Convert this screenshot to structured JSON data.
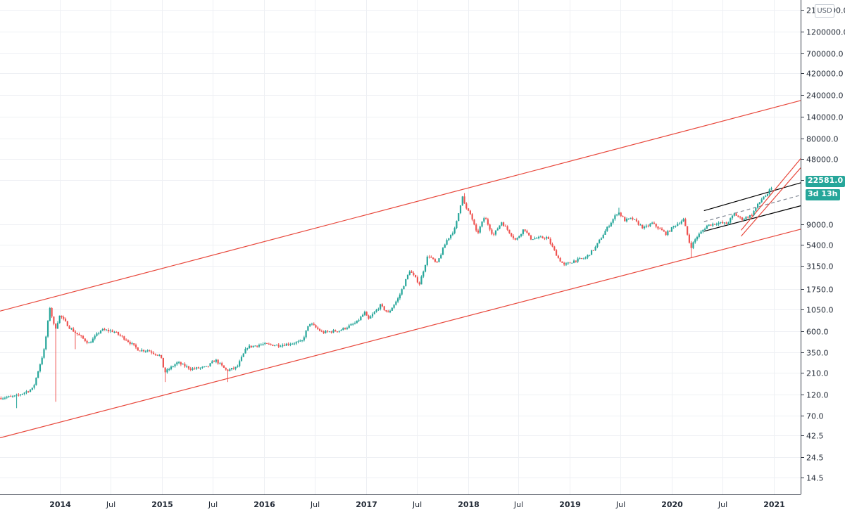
{
  "chart_data": {
    "type": "candlestick",
    "title": "",
    "xlabel": "",
    "ylabel": "",
    "currency": "USD",
    "y_scale": "log",
    "ylim": [
      9.5,
      2700000
    ],
    "xlim": [
      "2013-06-01",
      "2021-04-06"
    ],
    "y_ticks": [
      {
        "value": 14.5,
        "label": "14.5"
      },
      {
        "value": 24.5,
        "label": "24.5"
      },
      {
        "value": 42.5,
        "label": "42.5"
      },
      {
        "value": 70,
        "label": "70.0"
      },
      {
        "value": 120,
        "label": "120.0"
      },
      {
        "value": 210,
        "label": "210.0"
      },
      {
        "value": 350,
        "label": "350.0"
      },
      {
        "value": 600,
        "label": "600.0"
      },
      {
        "value": 1050,
        "label": "1050.0"
      },
      {
        "value": 1750,
        "label": "1750.0"
      },
      {
        "value": 3150,
        "label": "3150.0"
      },
      {
        "value": 5400,
        "label": "5400.0"
      },
      {
        "value": 9000,
        "label": "9000.0"
      },
      {
        "value": 28000,
        "label": "28000.0"
      },
      {
        "value": 48000,
        "label": "48000.0"
      },
      {
        "value": 80000,
        "label": "80000.0"
      },
      {
        "value": 140000,
        "label": "140000.0"
      },
      {
        "value": 240000,
        "label": "240000.0"
      },
      {
        "value": 420000,
        "label": "420000.0"
      },
      {
        "value": 700000,
        "label": "700000.0"
      },
      {
        "value": 1200000,
        "label": "1200000.0"
      },
      {
        "value": 2100000,
        "label": "2100000.0"
      }
    ],
    "x_ticks": [
      {
        "date": "2014-01-01",
        "label": "2014",
        "bold": true
      },
      {
        "date": "2014-07-01",
        "label": "Jul",
        "bold": false
      },
      {
        "date": "2015-01-01",
        "label": "2015",
        "bold": true
      },
      {
        "date": "2015-07-01",
        "label": "Jul",
        "bold": false
      },
      {
        "date": "2016-01-01",
        "label": "2016",
        "bold": true
      },
      {
        "date": "2016-07-01",
        "label": "Jul",
        "bold": false
      },
      {
        "date": "2017-01-01",
        "label": "2017",
        "bold": true
      },
      {
        "date": "2017-07-01",
        "label": "Jul",
        "bold": false
      },
      {
        "date": "2018-01-01",
        "label": "2018",
        "bold": true
      },
      {
        "date": "2018-07-01",
        "label": "Jul",
        "bold": false
      },
      {
        "date": "2019-01-01",
        "label": "2019",
        "bold": true
      },
      {
        "date": "2019-07-01",
        "label": "Jul",
        "bold": false
      },
      {
        "date": "2020-01-01",
        "label": "2020",
        "bold": true
      },
      {
        "date": "2020-07-01",
        "label": "Jul",
        "bold": false
      },
      {
        "date": "2021-01-01",
        "label": "2021",
        "bold": true
      }
    ],
    "price_path": [
      [
        "2013-06-01",
        110
      ],
      [
        "2013-08-01",
        115
      ],
      [
        "2013-10-01",
        140
      ],
      [
        "2013-11-10",
        380
      ],
      [
        "2013-11-30",
        1100
      ],
      [
        "2013-12-18",
        620
      ],
      [
        "2014-01-05",
        900
      ],
      [
        "2014-02-10",
        650
      ],
      [
        "2014-03-20",
        520
      ],
      [
        "2014-04-20",
        440
      ],
      [
        "2014-06-01",
        620
      ],
      [
        "2014-07-15",
        600
      ],
      [
        "2014-09-01",
        480
      ],
      [
        "2014-10-15",
        370
      ],
      [
        "2014-11-15",
        370
      ],
      [
        "2014-12-31",
        320
      ],
      [
        "2015-01-15",
        210
      ],
      [
        "2015-03-01",
        270
      ],
      [
        "2015-04-20",
        230
      ],
      [
        "2015-06-15",
        240
      ],
      [
        "2015-07-15",
        290
      ],
      [
        "2015-08-25",
        220
      ],
      [
        "2015-10-01",
        240
      ],
      [
        "2015-11-05",
        400
      ],
      [
        "2015-12-31",
        430
      ],
      [
        "2016-03-01",
        420
      ],
      [
        "2016-05-20",
        460
      ],
      [
        "2016-06-17",
        740
      ],
      [
        "2016-08-01",
        580
      ],
      [
        "2016-10-01",
        610
      ],
      [
        "2016-11-30",
        740
      ],
      [
        "2016-12-31",
        960
      ],
      [
        "2017-01-12",
        800
      ],
      [
        "2017-02-25",
        1150
      ],
      [
        "2017-03-25",
        950
      ],
      [
        "2017-05-01",
        1400
      ],
      [
        "2017-06-10",
        2800
      ],
      [
        "2017-07-15",
        2000
      ],
      [
        "2017-08-15",
        4200
      ],
      [
        "2017-09-15",
        3300
      ],
      [
        "2017-10-20",
        6000
      ],
      [
        "2017-11-20",
        8200
      ],
      [
        "2017-12-17",
        19500
      ],
      [
        "2017-12-25",
        14000
      ],
      [
        "2018-01-15",
        11500
      ],
      [
        "2018-02-06",
        7000
      ],
      [
        "2018-03-05",
        11000
      ],
      [
        "2018-04-05",
        6800
      ],
      [
        "2018-05-05",
        9600
      ],
      [
        "2018-06-25",
        6000
      ],
      [
        "2018-07-25",
        8200
      ],
      [
        "2018-08-15",
        6300
      ],
      [
        "2018-10-15",
        6500
      ],
      [
        "2018-11-25",
        3800
      ],
      [
        "2018-12-15",
        3200
      ],
      [
        "2019-01-20",
        3600
      ],
      [
        "2019-03-01",
        3850
      ],
      [
        "2019-04-05",
        5000
      ],
      [
        "2019-05-15",
        8000
      ],
      [
        "2019-06-26",
        12500
      ],
      [
        "2019-07-20",
        10000
      ],
      [
        "2019-08-15",
        10500
      ],
      [
        "2019-09-26",
        8200
      ],
      [
        "2019-10-26",
        9300
      ],
      [
        "2019-12-15",
        7100
      ],
      [
        "2020-01-15",
        8800
      ],
      [
        "2020-02-15",
        10200
      ],
      [
        "2020-03-12",
        5000
      ],
      [
        "2020-04-01",
        6500
      ],
      [
        "2020-05-10",
        8800
      ],
      [
        "2020-06-15",
        9400
      ],
      [
        "2020-07-20",
        9200
      ],
      [
        "2020-08-15",
        11800
      ],
      [
        "2020-09-10",
        10300
      ],
      [
        "2020-10-15",
        11400
      ],
      [
        "2020-11-05",
        14500
      ],
      [
        "2020-12-01",
        19000
      ],
      [
        "2020-12-10",
        18300
      ],
      [
        "2020-12-22",
        22581
      ]
    ],
    "spikes": [
      {
        "date": "2013-08-01",
        "low": 85
      },
      {
        "date": "2013-12-18",
        "low": 100
      },
      {
        "date": "2014-02-25",
        "low": 380
      },
      {
        "date": "2015-01-15",
        "low": 165
      },
      {
        "date": "2015-08-25",
        "low": 165
      },
      {
        "date": "2017-12-20",
        "high": 20000
      },
      {
        "date": "2019-06-26",
        "high": 13800
      },
      {
        "date": "2020-03-12",
        "low": 3900
      }
    ],
    "annotations": [
      {
        "kind": "trendline",
        "color": "#e8473b",
        "points": [
          [
            "2013-06-01",
            1000
          ],
          [
            "2021-04-06",
            210000
          ]
        ]
      },
      {
        "kind": "trendline",
        "color": "#e8473b",
        "points": [
          [
            "2013-06-01",
            40
          ],
          [
            "2021-04-06",
            8000
          ]
        ]
      },
      {
        "kind": "trendline",
        "color": "#000000",
        "points": [
          [
            "2020-04-25",
            12800
          ],
          [
            "2021-04-06",
            26000
          ]
        ]
      },
      {
        "kind": "trendline",
        "color": "#000000",
        "points": [
          [
            "2020-04-25",
            7600
          ],
          [
            "2021-04-06",
            14500
          ]
        ]
      },
      {
        "kind": "trendline",
        "color": "#7e8592",
        "dashed": true,
        "points": [
          [
            "2020-04-25",
            9700
          ],
          [
            "2021-04-06",
            19000
          ]
        ]
      },
      {
        "kind": "trendline",
        "color": "#e8473b",
        "points": [
          [
            "2020-09-05",
            7800
          ],
          [
            "2021-04-06",
            48000
          ]
        ]
      },
      {
        "kind": "trendline",
        "color": "#e8473b",
        "points": [
          [
            "2020-09-05",
            6700
          ],
          [
            "2021-04-06",
            38000
          ]
        ]
      }
    ],
    "last_price": "22581.0",
    "countdown": "3d 13h",
    "colors": {
      "up": "#26a69a",
      "down": "#ef5350",
      "channel": "#e8473b",
      "tag": "#26a69a"
    }
  }
}
